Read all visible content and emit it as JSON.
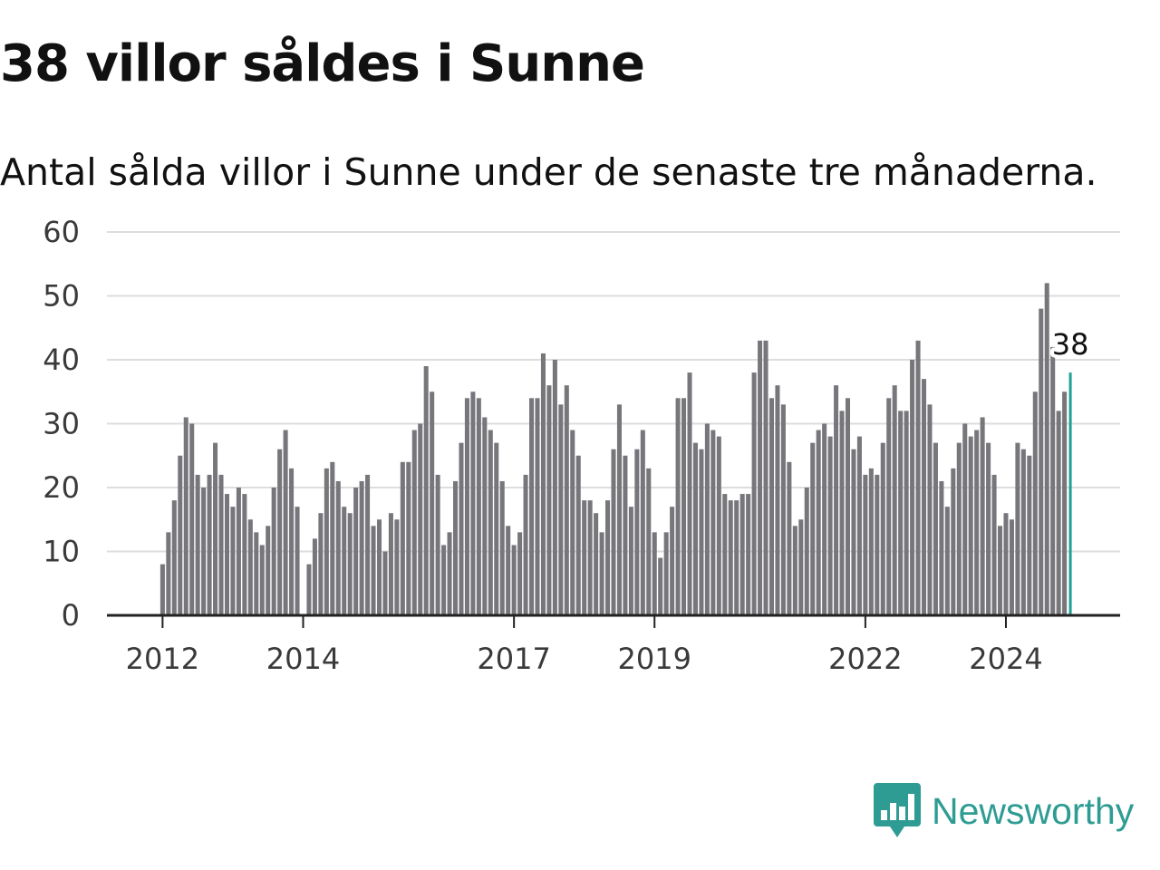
{
  "header": {
    "title": "38 villor såldes i Sunne",
    "subtitle": "Antal sålda villor i Sunne under de senaste tre månaderna."
  },
  "brand": {
    "name": "Newsworthy",
    "color": "#2e9c93",
    "icon": "newsworthy-logo-icon"
  },
  "colors": {
    "bar": "#77767b",
    "highlight": "#1fa094",
    "grid": "#dddddd",
    "axis": "#222222"
  },
  "chart_data": {
    "type": "bar",
    "title": "38 villor såldes i Sunne",
    "subtitle": "Antal sålda villor i Sunne under de senaste tre månaderna.",
    "xlabel": "",
    "ylabel": "",
    "ylim": [
      0,
      60
    ],
    "y_ticks": [
      0,
      10,
      20,
      30,
      40,
      50,
      60
    ],
    "x_ticks": [
      {
        "label": "2012",
        "date": "2012-01"
      },
      {
        "label": "2014",
        "date": "2014-01"
      },
      {
        "label": "2017",
        "date": "2017-01"
      },
      {
        "label": "2019",
        "date": "2019-01"
      },
      {
        "label": "2022",
        "date": "2022-01"
      },
      {
        "label": "2024",
        "date": "2024-01"
      }
    ],
    "x_range": [
      "2011-04",
      "2025-09"
    ],
    "grid": true,
    "legend": "none",
    "series": [
      {
        "start": "2012-01",
        "values": [
          8,
          13,
          18,
          25,
          31,
          30,
          22,
          20,
          22,
          27,
          22,
          19,
          17,
          20,
          19,
          15,
          13,
          11,
          14,
          20,
          26,
          29,
          23,
          17,
          0,
          8,
          12,
          16,
          23,
          24,
          21,
          17,
          16,
          20,
          21,
          22,
          14,
          15,
          10,
          16,
          15,
          24,
          24,
          29,
          30,
          39,
          35,
          22,
          11,
          13,
          21,
          27,
          34,
          35,
          34,
          31,
          29,
          27,
          21,
          14,
          11,
          13,
          22,
          34,
          34,
          41,
          36,
          40,
          33,
          36,
          29,
          25,
          18,
          18,
          16,
          13,
          18,
          26,
          33,
          25,
          17,
          26,
          29,
          23,
          13,
          9,
          13,
          17,
          34,
          34,
          38,
          27,
          26,
          30,
          29,
          28,
          19,
          18,
          18,
          19,
          19,
          38,
          43,
          43,
          34,
          36,
          33,
          24,
          14,
          15,
          20,
          27,
          29,
          30,
          28,
          36,
          32,
          34,
          26,
          28,
          22,
          23,
          22,
          27,
          34,
          36,
          32,
          32,
          40,
          43,
          37,
          33,
          27,
          21,
          17,
          23,
          27,
          30,
          28,
          29,
          31,
          27,
          22,
          14,
          16,
          15,
          27,
          26,
          25,
          35,
          48,
          52,
          42,
          32,
          35,
          38
        ],
        "highlight_last": true,
        "highlight_label": "38"
      }
    ]
  }
}
